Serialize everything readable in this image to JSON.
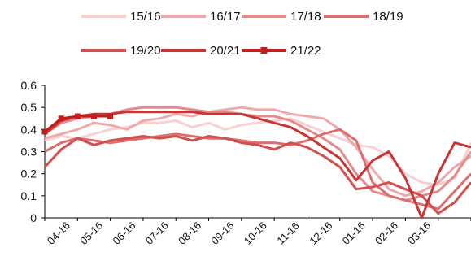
{
  "chart_data": {
    "type": "line",
    "title": "",
    "xlabel": "",
    "ylabel": "",
    "ylim": [
      0,
      0.6
    ],
    "yticks": [
      0,
      0.1,
      0.2,
      0.3,
      0.4,
      0.5,
      0.6
    ],
    "ytick_labels": [
      "0",
      "0.1",
      "0.2",
      "0.3",
      "0.4",
      "0.5",
      "0.6"
    ],
    "xtick_labels": [
      "04-16",
      "05-16",
      "06-16",
      "07-16",
      "08-16",
      "09-16",
      "10-16",
      "11-16",
      "12-16",
      "01-16",
      "02-16",
      "03-16"
    ],
    "grid": false,
    "legend": "top-center",
    "n_points": 27,
    "series": [
      {
        "name": "15/16",
        "color": "#f6d1d1",
        "marker": false,
        "values": [
          0.35,
          0.37,
          0.36,
          0.38,
          0.4,
          0.41,
          0.43,
          0.43,
          0.44,
          0.41,
          0.43,
          0.4,
          0.42,
          0.43,
          0.44,
          0.45,
          0.42,
          0.39,
          0.36,
          0.33,
          0.32,
          0.28,
          0.2,
          0.16,
          0.15,
          0.18,
          0.34
        ]
      },
      {
        "name": "16/17",
        "color": "#eeaaaa",
        "marker": false,
        "values": [
          0.36,
          0.38,
          0.4,
          0.43,
          0.42,
          0.4,
          0.44,
          0.45,
          0.47,
          0.46,
          0.48,
          0.49,
          0.5,
          0.49,
          0.49,
          0.47,
          0.46,
          0.45,
          0.4,
          0.32,
          0.22,
          0.13,
          0.1,
          0.12,
          0.16,
          0.23,
          0.28
        ]
      },
      {
        "name": "17/18",
        "color": "#e58b8b",
        "marker": false,
        "values": [
          0.38,
          0.43,
          0.45,
          0.46,
          0.47,
          0.49,
          0.5,
          0.5,
          0.5,
          0.49,
          0.48,
          0.48,
          0.47,
          0.46,
          0.46,
          0.44,
          0.4,
          0.36,
          0.31,
          0.2,
          0.12,
          0.1,
          0.08,
          0.1,
          0.12,
          0.19,
          0.3
        ]
      },
      {
        "name": "18/19",
        "color": "#dc6e6e",
        "marker": false,
        "values": [
          0.3,
          0.34,
          0.36,
          0.35,
          0.34,
          0.35,
          0.36,
          0.37,
          0.38,
          0.37,
          0.36,
          0.36,
          0.35,
          0.34,
          0.34,
          0.33,
          0.35,
          0.38,
          0.4,
          0.35,
          0.16,
          0.1,
          0.08,
          0.06,
          0.04,
          0.12,
          0.2
        ]
      },
      {
        "name": "19/20",
        "color": "#d24f4f",
        "marker": false,
        "values": [
          0.23,
          0.31,
          0.36,
          0.33,
          0.35,
          0.36,
          0.37,
          0.36,
          0.37,
          0.35,
          0.37,
          0.36,
          0.34,
          0.33,
          0.31,
          0.34,
          0.32,
          0.28,
          0.23,
          0.13,
          0.14,
          0.16,
          0.13,
          0.1,
          0.02,
          0.07,
          0.16
        ]
      },
      {
        "name": "20/21",
        "color": "#c93535",
        "marker": false,
        "values": [
          0.38,
          0.44,
          0.46,
          0.47,
          0.47,
          0.48,
          0.48,
          0.48,
          0.48,
          0.48,
          0.47,
          0.47,
          0.47,
          0.45,
          0.43,
          0.41,
          0.37,
          0.32,
          0.27,
          0.17,
          0.26,
          0.3,
          0.18,
          0.0,
          0.2,
          0.34,
          0.32
        ]
      },
      {
        "name": "21/22",
        "color": "#c41d1d",
        "marker": true,
        "values": [
          0.39,
          0.45,
          0.46,
          0.46,
          0.46
        ]
      }
    ]
  }
}
